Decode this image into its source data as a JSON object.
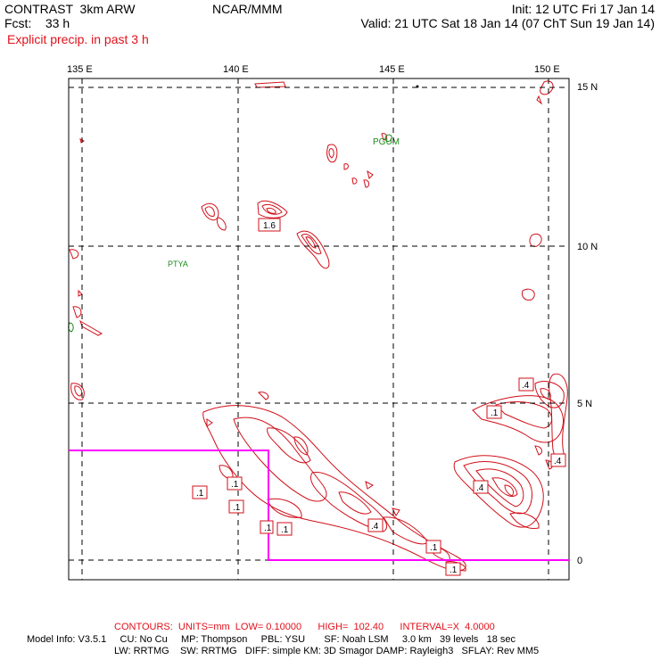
{
  "header": {
    "model": "CONTRAST  3km ARW",
    "fcst": "Fcst:    33 h",
    "center": "NCAR/MMM",
    "init": "Init: 12 UTC Fri 17 Jan 14",
    "valid": "Valid: 21 UTC Sat 18 Jan 14 (07 ChT Sun 19 Jan 14)",
    "field": "Explicit precip. in past 3 h"
  },
  "map": {
    "lon_labels": [
      "135 E",
      "140 E",
      "145 E",
      "150 E"
    ],
    "lat_labels": [
      "15 N",
      "10 N",
      "5 N",
      "0"
    ],
    "stations": [
      "PGUM",
      "PTYA"
    ],
    "contour_labels": [
      "1.6",
      ".4",
      ".1",
      ".4",
      ".1",
      ".4",
      ".1",
      ".1",
      ".1",
      ".1",
      ".4",
      ".1",
      ".1"
    ],
    "colors": {
      "contour": "#d0101a",
      "border": "#ff00ff",
      "station": "#1a8a1a",
      "grid": "#000000"
    }
  },
  "footer": {
    "contours": "CONTOURS:  UNITS=mm  LOW= 0.10000      HIGH=  102.40      INTERVAL=X  4.0000",
    "model_info": "Model Info: V3.5.1     CU: No Cu     MP: Thompson     PBL: YSU       SF: Noah LSM     3.0 km   39 levels   18 sec",
    "model_info2": "LW: RRTMG    SW: RRTMG   DIFF: simple KM: 3D Smagor DAMP: Rayleigh3   SFLAY: Rev MM5"
  }
}
